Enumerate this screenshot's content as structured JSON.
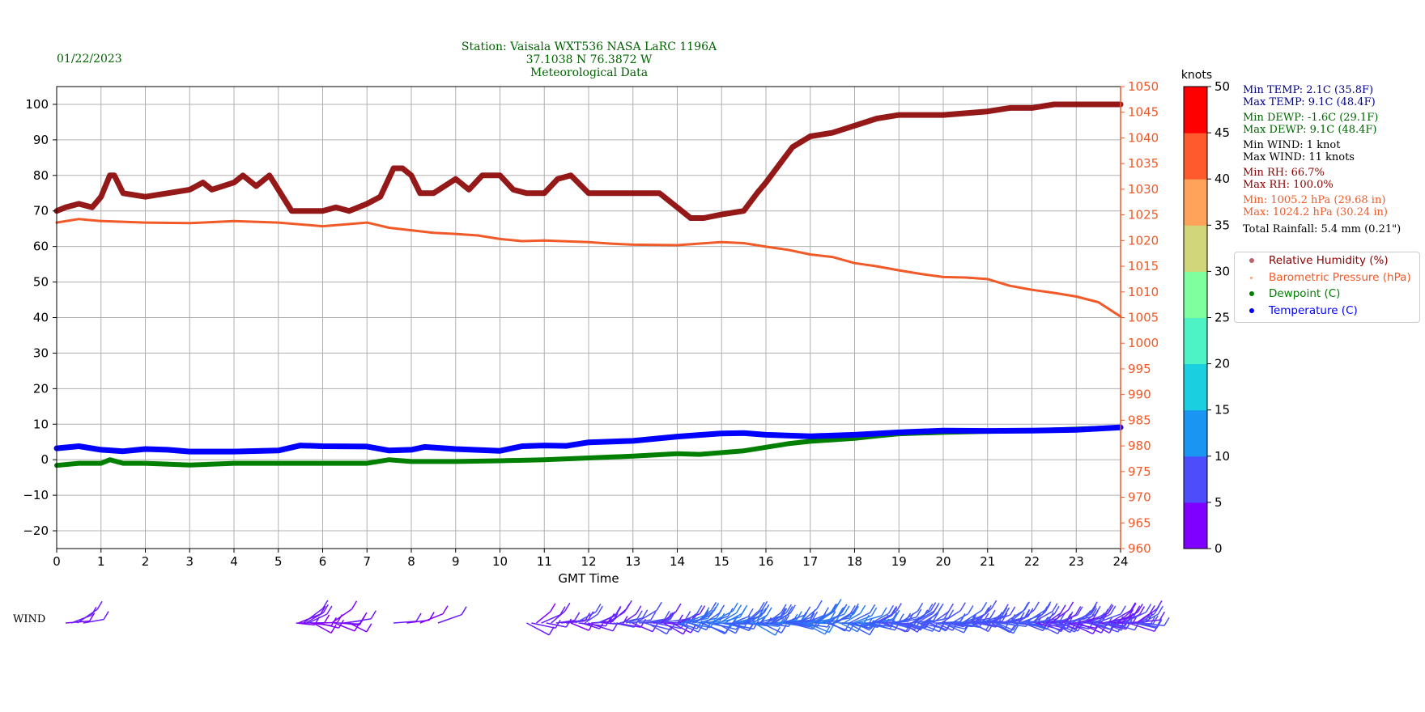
{
  "header": {
    "date": "01/22/2023",
    "title_lines": [
      "Station:  Vaisala WXT536  NASA LaRC 1196A",
      "37.1038 N 76.3872 W",
      "Meteorological Data"
    ]
  },
  "stats": [
    {
      "text": "Min TEMP: 2.1C (35.8F)",
      "color": "#00008b"
    },
    {
      "text": "Max TEMP: 9.1C (48.4F)",
      "color": "#00008b"
    },
    {
      "text": "Min DEWP: -1.6C (29.1F)",
      "color": "#006400"
    },
    {
      "text": "Max DEWP: 9.1C (48.4F)",
      "color": "#006400"
    },
    {
      "text": "Min WIND: 1 knot",
      "color": "#000000"
    },
    {
      "text": "Max WIND: 11 knots",
      "color": "#000000"
    },
    {
      "text": "Min RH: 66.7%",
      "color": "#8b0000"
    },
    {
      "text": "Max RH: 100.0%",
      "color": "#8b0000"
    },
    {
      "text": "Min: 1005.2 hPa (29.68 in)",
      "color": "#f05a28"
    },
    {
      "text": "Max: 1024.2 hPa (30.24 in)",
      "color": "#f05a28"
    },
    {
      "text": "Total Rainfall: 5.4 mm (0.21\")",
      "color": "#000000"
    }
  ],
  "legend": [
    {
      "label": "Relative Humidity (%)",
      "color": "#8b0000"
    },
    {
      "label": "Barometric Pressure (hPa)",
      "color": "#f05a28"
    },
    {
      "label": "Dewpoint (C)",
      "color": "#007f00"
    },
    {
      "label": "Temperature (C)",
      "color": "#0000ff"
    }
  ],
  "wind_label": "WIND",
  "colorbar": {
    "title": "knots",
    "ticks": [
      "0",
      "5",
      "10",
      "15",
      "20",
      "25",
      "30",
      "35",
      "40",
      "45",
      "50"
    ],
    "colors": [
      "#8000ff",
      "#4d4dfc",
      "#1a96f2",
      "#1acfe0",
      "#4df3c4",
      "#80ff9f",
      "#d2d67a",
      "#ffa35a",
      "#ff5a2e",
      "#ff0000"
    ]
  },
  "chart_data": {
    "type": "line",
    "xlabel": "GMT Time",
    "xlim": [
      0,
      24
    ],
    "x_ticks": [
      "0",
      "1",
      "2",
      "3",
      "4",
      "5",
      "6",
      "7",
      "8",
      "9",
      "10",
      "11",
      "12",
      "13",
      "14",
      "15",
      "16",
      "17",
      "18",
      "19",
      "20",
      "21",
      "22",
      "23",
      "24"
    ],
    "ylim": [
      -25,
      105
    ],
    "y_ticks": [
      "−20",
      "−10",
      "0",
      "10",
      "20",
      "30",
      "40",
      "50",
      "60",
      "70",
      "80",
      "90",
      "100"
    ],
    "y2lim": [
      960,
      1050
    ],
    "y2_ticks": [
      "960",
      "965",
      "970",
      "975",
      "980",
      "985",
      "990",
      "995",
      "1000",
      "1005",
      "1010",
      "1015",
      "1020",
      "1025",
      "1030",
      "1035",
      "1040",
      "1045",
      "1050"
    ],
    "grid": true,
    "series": [
      {
        "name": "Relative Humidity (%)",
        "axis": "left",
        "color": "#8b0000",
        "x": [
          0,
          0.2,
          0.5,
          0.8,
          1.0,
          1.2,
          1.3,
          1.5,
          2.0,
          2.5,
          3.0,
          3.3,
          3.5,
          4.0,
          4.2,
          4.5,
          4.8,
          5.0,
          5.3,
          5.6,
          6.0,
          6.3,
          6.6,
          7.0,
          7.3,
          7.6,
          7.8,
          8.0,
          8.2,
          8.5,
          9.0,
          9.3,
          9.6,
          10.0,
          10.3,
          10.6,
          11.0,
          11.3,
          11.6,
          12.0,
          12.5,
          13.0,
          13.3,
          13.6,
          14.0,
          14.3,
          14.6,
          15.0,
          15.5,
          15.8,
          16.0,
          16.3,
          16.6,
          17.0,
          17.5,
          18.0,
          18.5,
          19.0,
          19.5,
          20.0,
          21.0,
          21.5,
          22.0,
          22.5,
          23.0,
          24.0
        ],
        "y": [
          70,
          71,
          72,
          71,
          74,
          80,
          80,
          75,
          74,
          75,
          76,
          78,
          76,
          78,
          80,
          77,
          80,
          76,
          70,
          70,
          70,
          71,
          70,
          72,
          74,
          82,
          82,
          80,
          75,
          75,
          79,
          76,
          80,
          80,
          76,
          75,
          75,
          79,
          80,
          75,
          75,
          75,
          75,
          75,
          71,
          68,
          68,
          69,
          70,
          75,
          78,
          83,
          88,
          91,
          92,
          94,
          96,
          97,
          97,
          97,
          98,
          99,
          99,
          100,
          100,
          100
        ]
      },
      {
        "name": "Barometric Pressure (hPa)",
        "axis": "right",
        "color": "#f05a28",
        "x": [
          0,
          0.5,
          1,
          2,
          3,
          4,
          5,
          6,
          7,
          7.5,
          8,
          8.5,
          9,
          9.5,
          10,
          10.5,
          11,
          12,
          12.5,
          13,
          14,
          15,
          15.5,
          16,
          16.5,
          17,
          17.5,
          18,
          18.5,
          19,
          19.5,
          20,
          20.5,
          21,
          21.5,
          22,
          22.5,
          23,
          23.5,
          24
        ],
        "y": [
          1023.5,
          1024.2,
          1023.8,
          1023.5,
          1023.4,
          1023.8,
          1023.5,
          1022.8,
          1023.5,
          1022.5,
          1022.0,
          1021.5,
          1021.3,
          1021,
          1020.3,
          1019.9,
          1020,
          1019.7,
          1019.4,
          1019.2,
          1019.1,
          1019.7,
          1019.5,
          1018.8,
          1018.2,
          1017.3,
          1016.8,
          1015.6,
          1015,
          1014.2,
          1013.5,
          1012.9,
          1012.8,
          1012.5,
          1011.2,
          1010.4,
          1009.8,
          1009.1,
          1008,
          1005.2
        ]
      },
      {
        "name": "Dewpoint (C)",
        "axis": "left",
        "color": "#007f00",
        "x": [
          0,
          0.5,
          1,
          1.2,
          1.5,
          2,
          3,
          4,
          5,
          6,
          7,
          7.5,
          8,
          9,
          10,
          11,
          12,
          13,
          14,
          14.5,
          15,
          15.5,
          16,
          16.5,
          17,
          17.5,
          18,
          18.5,
          19,
          20,
          21,
          22,
          23,
          24
        ],
        "y": [
          -1.6,
          -1,
          -1,
          0,
          -1,
          -1,
          -1.5,
          -1,
          -1,
          -1,
          -1,
          0,
          -0.5,
          -0.5,
          -0.3,
          0,
          0.5,
          1,
          1.7,
          1.5,
          2,
          2.5,
          3.5,
          4.5,
          5.2,
          5.6,
          6,
          6.7,
          7.3,
          7.7,
          8,
          8.2,
          8.6,
          9.1
        ]
      },
      {
        "name": "Temperature (C)",
        "axis": "left",
        "color": "#0000ff",
        "x": [
          0,
          0.5,
          1,
          1.5,
          2,
          2.5,
          3,
          4,
          5,
          5.5,
          6,
          7,
          7.5,
          8,
          8.3,
          9,
          10,
          10.5,
          11,
          11.5,
          12,
          13,
          14,
          15,
          15.5,
          16,
          17,
          18,
          19,
          20,
          21,
          22,
          23,
          24
        ],
        "y": [
          3.2,
          3.8,
          2.8,
          2.4,
          3,
          2.8,
          2.3,
          2.3,
          2.6,
          4,
          3.8,
          3.7,
          2.6,
          2.8,
          3.6,
          3,
          2.5,
          3.8,
          4,
          3.9,
          4.9,
          5.3,
          6.5,
          7.4,
          7.5,
          7,
          6.6,
          7,
          7.7,
          8.2,
          8.1,
          8.2,
          8.4,
          9.1
        ]
      }
    ]
  }
}
